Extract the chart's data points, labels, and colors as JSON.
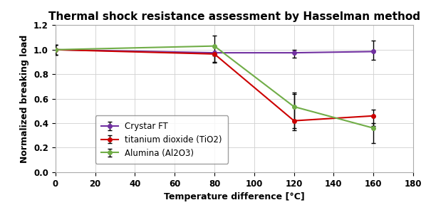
{
  "title": "Thermal shock resistance assessment by Hasselman method",
  "xlabel": "Temperature difference [°C]",
  "ylabel": "Normalized breaking load",
  "xlim": [
    0,
    180
  ],
  "ylim": [
    0.0,
    1.2
  ],
  "xticks": [
    0,
    20,
    40,
    60,
    80,
    100,
    120,
    140,
    160,
    180
  ],
  "yticks": [
    0.0,
    0.2,
    0.4,
    0.6,
    0.8,
    1.0,
    1.2
  ],
  "series": [
    {
      "label": "Crystar FT",
      "color": "#7030A0",
      "marker": "o",
      "x": [
        0,
        80,
        120,
        160
      ],
      "y": [
        1.0,
        0.975,
        0.975,
        0.985
      ],
      "yerr_low": [
        0.04,
        0.075,
        0.04,
        0.065
      ],
      "yerr_high": [
        0.04,
        0.0,
        0.025,
        0.09
      ]
    },
    {
      "label": "titanium dioxide (TiO2)",
      "color": "#CC0000",
      "marker": "o",
      "x": [
        0,
        80,
        120,
        160
      ],
      "y": [
        1.0,
        0.965,
        0.42,
        0.46
      ],
      "yerr_low": [
        0.04,
        0.07,
        0.06,
        0.08
      ],
      "yerr_high": [
        0.04,
        0.0,
        0.22,
        0.05
      ]
    },
    {
      "label": "Alumina (Al2O3)",
      "color": "#70AD47",
      "marker": "o",
      "x": [
        0,
        80,
        120,
        160
      ],
      "y": [
        1.0,
        1.03,
        0.535,
        0.36
      ],
      "yerr_low": [
        0.04,
        0.08,
        0.19,
        0.125
      ],
      "yerr_high": [
        0.04,
        0.085,
        0.115,
        0.04
      ]
    }
  ],
  "background_color": "#ffffff",
  "grid_color": "#d0d0d0",
  "title_fontsize": 11,
  "label_fontsize": 9,
  "tick_fontsize": 8.5,
  "legend_fontsize": 8.5
}
